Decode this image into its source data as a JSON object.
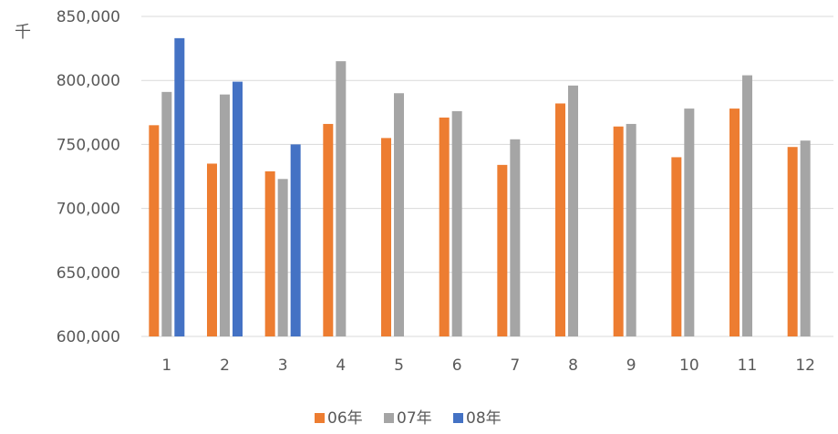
{
  "chart_data": {
    "type": "bar",
    "unit_label": "千",
    "categories": [
      "1",
      "2",
      "3",
      "4",
      "5",
      "6",
      "7",
      "8",
      "9",
      "10",
      "11",
      "12"
    ],
    "series": [
      {
        "name": "06年",
        "color": "#ed7d31",
        "values": [
          765000,
          735000,
          729000,
          766000,
          755000,
          771000,
          734000,
          782000,
          764000,
          740000,
          778000,
          748000
        ]
      },
      {
        "name": "07年",
        "color": "#a5a5a5",
        "values": [
          791000,
          789000,
          723000,
          815000,
          790000,
          776000,
          754000,
          796000,
          766000,
          778000,
          804000,
          753000
        ]
      },
      {
        "name": "08年",
        "color": "#4472c4",
        "values": [
          833000,
          799000,
          750000,
          null,
          null,
          null,
          null,
          null,
          null,
          null,
          null,
          null
        ]
      }
    ],
    "ylim": [
      600000,
      850000
    ],
    "yticks": [
      "600,000",
      "650,000",
      "700,000",
      "750,000",
      "800,000",
      "850,000"
    ],
    "ytick_values": [
      600000,
      650000,
      700000,
      750000,
      800000,
      850000
    ],
    "grid": true,
    "legend_position": "bottom"
  }
}
